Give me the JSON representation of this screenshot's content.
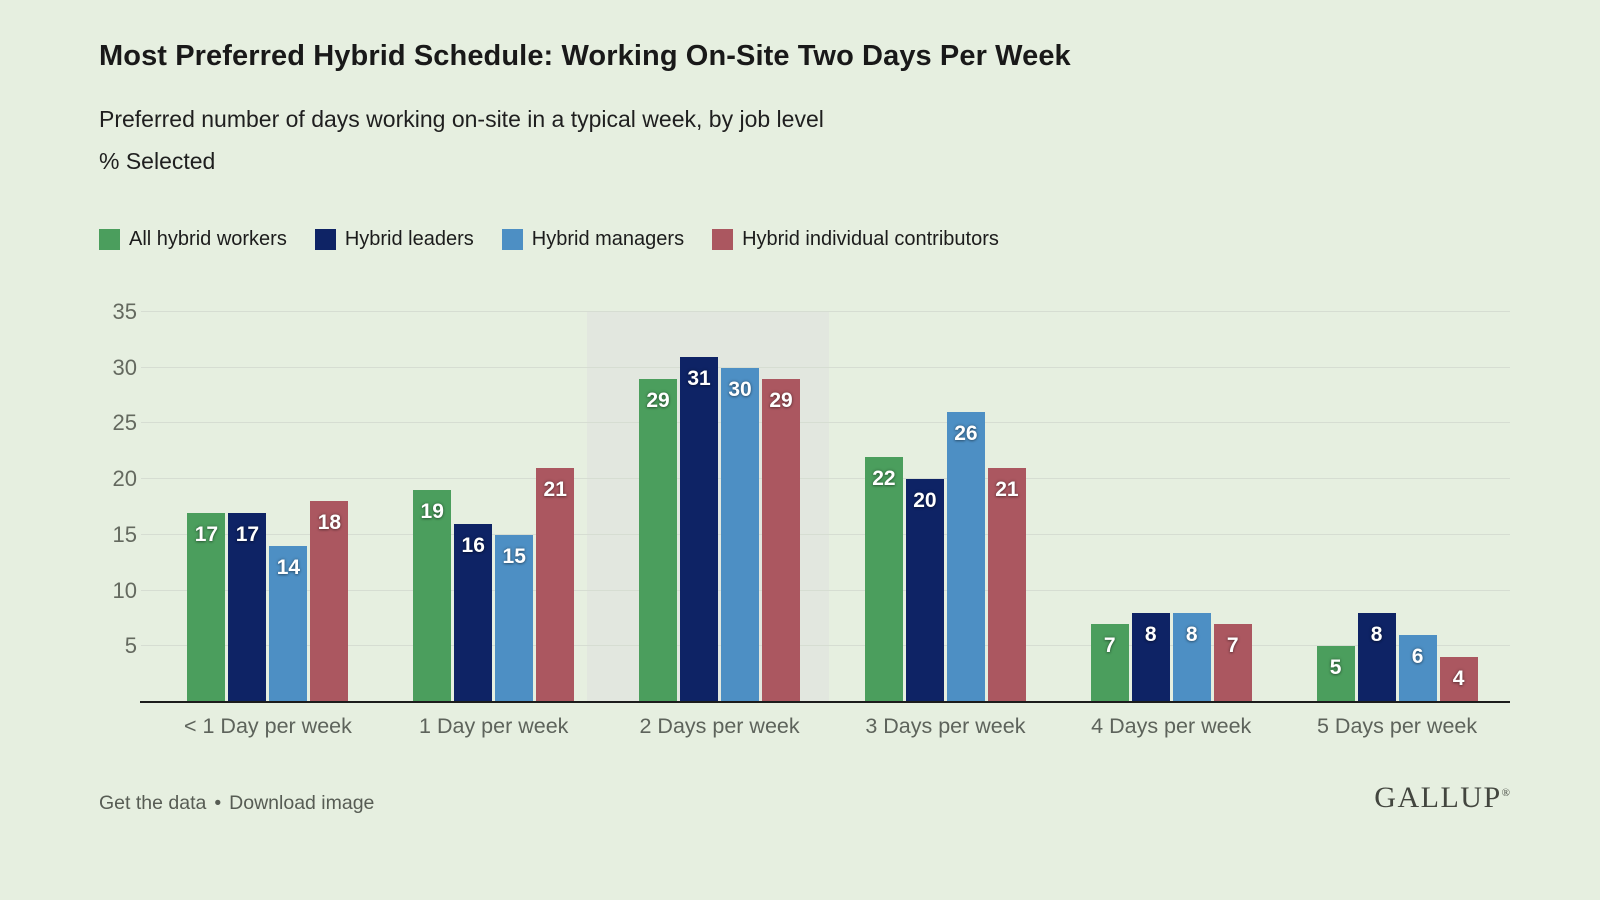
{
  "header": {
    "title": "Most Preferred Hybrid Schedule: Working On-Site Two Days Per Week",
    "subtitle": "Preferred number of days working on-site in a typical week, by job level",
    "unit_label": "% Selected"
  },
  "chart_data": {
    "type": "bar",
    "title": "Most Preferred Hybrid Schedule: Working On-Site Two Days Per Week",
    "xlabel": "",
    "ylabel": "% Selected",
    "categories": [
      "< 1 Day per week",
      "1 Day per week",
      "2 Days per week",
      "3 Days per week",
      "4 Days per week",
      "5 Days per week"
    ],
    "series": [
      {
        "name": "All hybrid workers",
        "color": "#4b9e5d",
        "values": [
          17,
          19,
          29,
          22,
          7,
          5
        ]
      },
      {
        "name": "Hybrid leaders",
        "color": "#0e2365",
        "values": [
          17,
          16,
          31,
          20,
          8,
          8
        ]
      },
      {
        "name": "Hybrid managers",
        "color": "#4d8fc4",
        "values": [
          14,
          15,
          30,
          26,
          8,
          6
        ]
      },
      {
        "name": "Hybrid individual contributors",
        "color": "#ab5760",
        "values": [
          18,
          21,
          29,
          21,
          7,
          4
        ]
      }
    ],
    "ylim": [
      0,
      35
    ],
    "yticks": [
      5,
      10,
      15,
      20,
      25,
      30,
      35
    ],
    "grid": true,
    "legend_position": "top",
    "highlight": {
      "category": "2 Days per week",
      "color": "#e2e7df"
    },
    "style": {
      "background": "#e6efe0",
      "gridline_color": "#d6ddd2",
      "axis_line_color": "#1c1c1c",
      "bar_label_color": "#ffffff",
      "tick_label_color": "#64695f"
    }
  },
  "footer": {
    "link1": "Get the data",
    "separator": "•",
    "link2": "Download image",
    "logo": "GALLUP",
    "logo_mark": "®"
  }
}
